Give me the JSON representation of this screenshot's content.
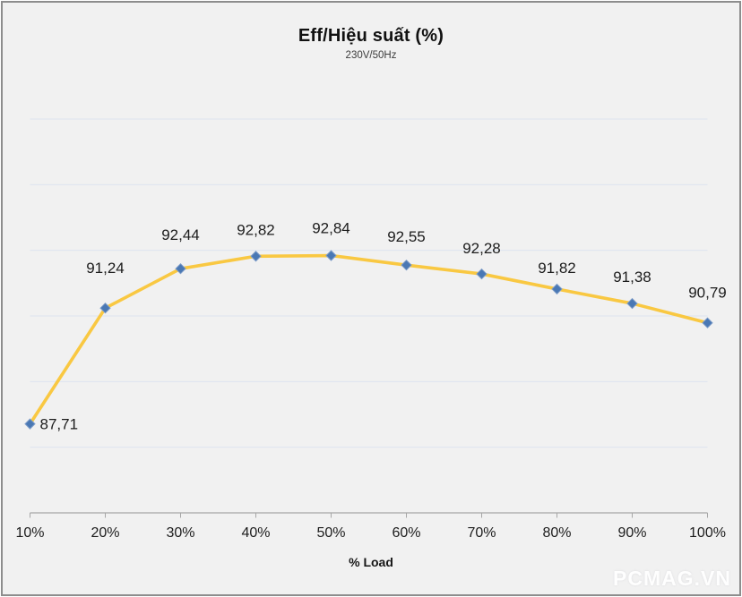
{
  "chart_data": {
    "type": "line",
    "title": "Eff/Hiệu suất (%)",
    "subtitle": "230V/50Hz",
    "xlabel": "% Load",
    "ylabel": "",
    "categories": [
      "10%",
      "20%",
      "30%",
      "40%",
      "50%",
      "60%",
      "70%",
      "80%",
      "90%",
      "100%"
    ],
    "series": [
      {
        "name": "Eff/Hiệu suất (%)",
        "values": [
          87.71,
          91.24,
          92.44,
          92.82,
          92.84,
          92.55,
          92.28,
          91.82,
          91.38,
          90.79
        ]
      }
    ],
    "data_labels": [
      "87,71",
      "91,24",
      "92,44",
      "92,82",
      "92,84",
      "92,55",
      "92,28",
      "91,82",
      "91,38",
      "90,79"
    ],
    "ylim": [
      85,
      97
    ],
    "y_major_unit": 2,
    "grid": true,
    "y_axis_labels_visible": false,
    "legend_position": "none",
    "colors": {
      "line": "#F9C842",
      "marker": "#4A78B4",
      "marker_edge": "#7D9CC8",
      "gridline": "#DDE4EF",
      "axis": "#A6A6A6",
      "background": "#F1F1F1",
      "text": "#1C1C1C"
    },
    "marker_shape": "diamond"
  },
  "watermark": {
    "text": "PCMAG.VN",
    "color": "#FFFFFF"
  }
}
